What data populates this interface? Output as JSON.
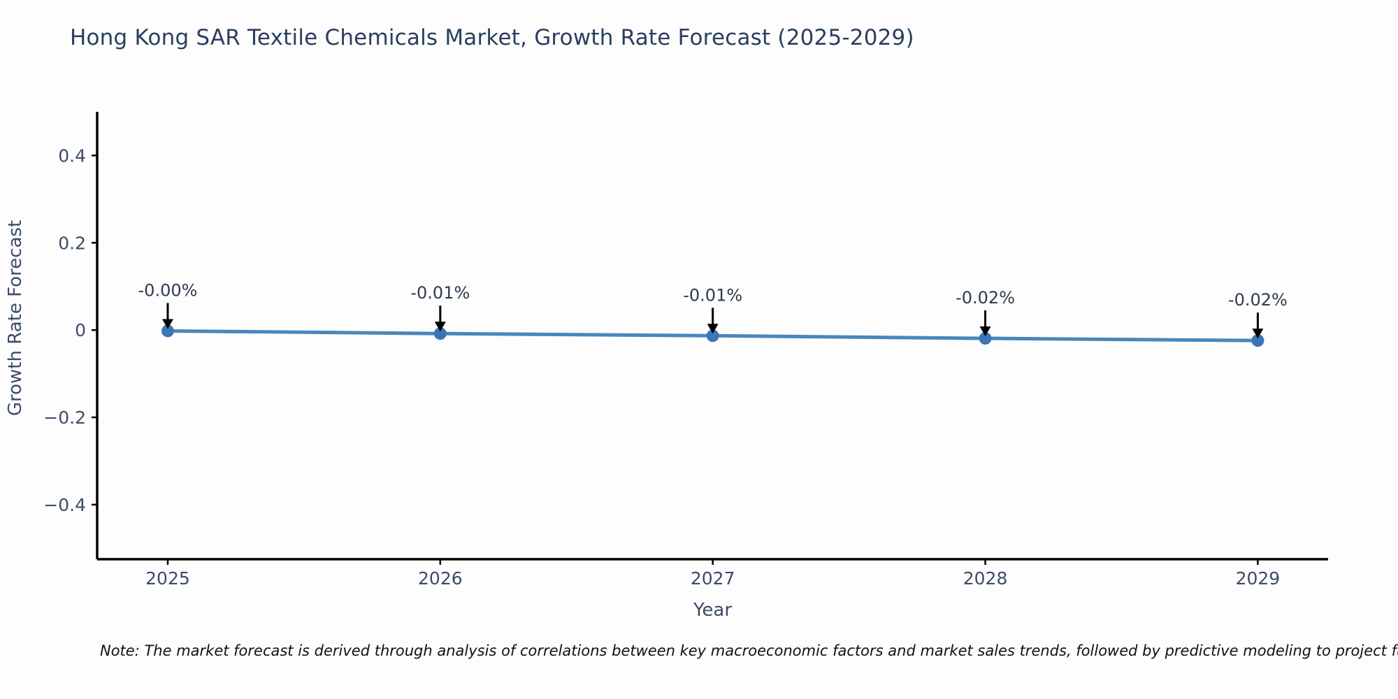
{
  "note": "Note: The market forecast is derived through analysis of correlations between key macroeconomic factors and market sales trends, followed by predictive modeling to project future sa",
  "chart_data": {
    "type": "line",
    "title": "Hong Kong SAR Textile Chemicals Market, Growth Rate Forecast (2025-2029)",
    "xlabel": "Year",
    "ylabel": "Growth Rate Forecast",
    "x": [
      2025,
      2026,
      2027,
      2028,
      2029
    ],
    "y": [
      -0.002,
      -0.008,
      -0.013,
      -0.019,
      -0.024
    ],
    "point_labels": [
      "-0.00%",
      "-0.01%",
      "-0.01%",
      "-0.02%",
      "-0.02%"
    ],
    "series_name": "Growth Rate Forecast",
    "xlim": [
      2024.741,
      2029.258
    ],
    "ylim": [
      -0.525,
      0.5
    ],
    "x_ticks": [
      {
        "value": 2025,
        "label": "2025"
      },
      {
        "value": 2026,
        "label": "2026"
      },
      {
        "value": 2027,
        "label": "2027"
      },
      {
        "value": 2028,
        "label": "2028"
      },
      {
        "value": 2029,
        "label": "2029"
      }
    ],
    "y_ticks": [
      {
        "value": 0.4,
        "label": "0.4"
      },
      {
        "value": 0.2,
        "label": "0.2"
      },
      {
        "value": 0,
        "label": "0"
      },
      {
        "value": -0.2,
        "label": "−0.2"
      },
      {
        "value": -0.4,
        "label": "−0.4"
      }
    ],
    "grid": false,
    "legend": null,
    "annotation_arrow": "down",
    "colors": {
      "line": "#4a87b9",
      "marker": "#3a76b4",
      "axis": "#000000",
      "tick_label": "#3d4c66",
      "annotation_text": "#2f3b4c",
      "arrow": "#000000",
      "title": "#2a3f5f",
      "background": "#fdfdfe"
    }
  }
}
